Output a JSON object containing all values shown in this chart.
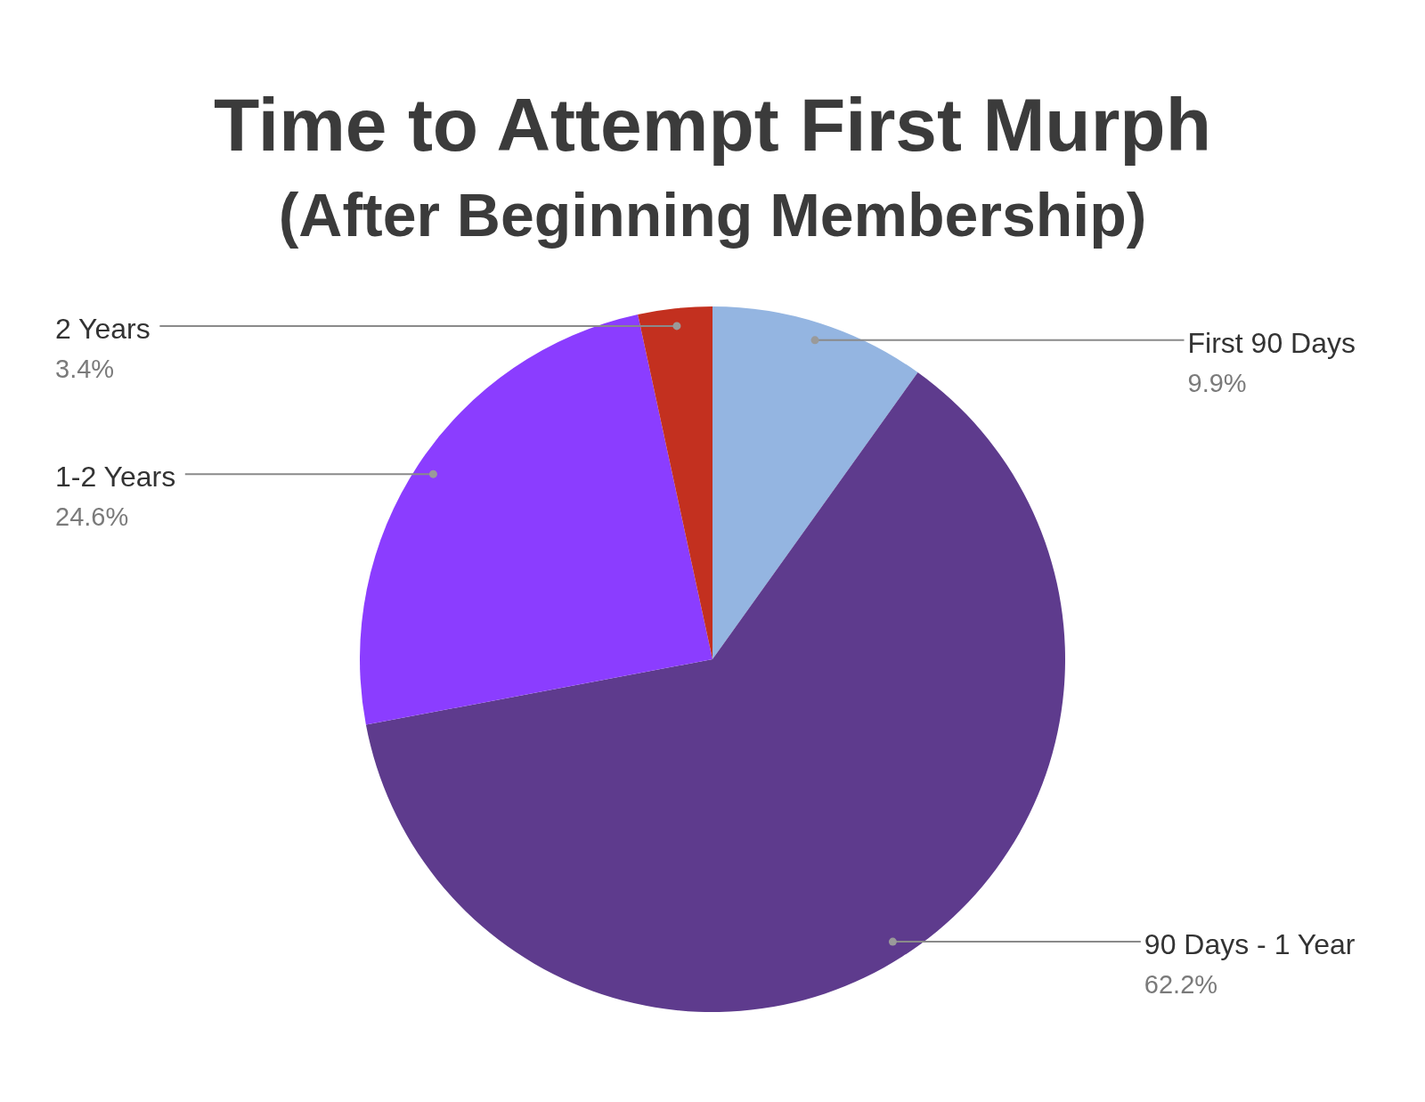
{
  "chart_data": {
    "type": "pie",
    "title": "Time to Attempt First Murph",
    "subtitle": "(After Beginning Membership)",
    "categories": [
      "First 90 Days",
      "90 Days - 1 Year",
      "1-2 Years",
      "2 Years"
    ],
    "values": [
      9.9,
      62.2,
      24.6,
      3.4
    ],
    "colors": [
      "#94b5e1",
      "#5e3b8d",
      "#8b3dff",
      "#c3301f"
    ],
    "value_labels": [
      "9.9%",
      "62.2%",
      "24.6%",
      "3.4%"
    ],
    "legend": false
  }
}
